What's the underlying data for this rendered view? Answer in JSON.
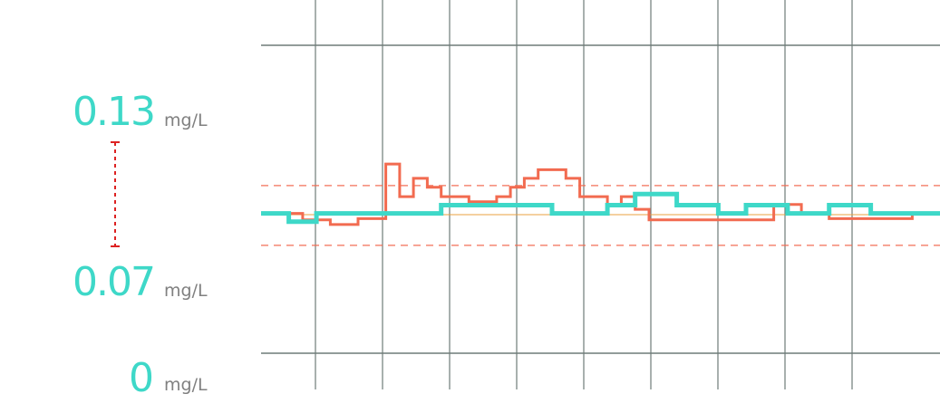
{
  "labels": {
    "top": {
      "value": "0.13",
      "unit": "mg/L"
    },
    "mid": {
      "value": "0.07",
      "unit": "mg/L"
    },
    "bottom": {
      "value": "0",
      "unit": "mg/L"
    }
  },
  "colors": {
    "series_a": "#3ed8c8",
    "series_b": "#f26b50",
    "band": "#f26b50",
    "target": "#e8a040",
    "grid": "#6f7b78",
    "range_marker": "#dd2222"
  },
  "chart_data": {
    "type": "line",
    "step": true,
    "title": "",
    "xlabel": "",
    "ylabel": "",
    "ylim": [
      0,
      0.2
    ],
    "grid": true,
    "band": [
      0.0701,
      0.1089
    ],
    "target": 0.09,
    "x": [
      0,
      1,
      2,
      3,
      4,
      5,
      6,
      7,
      8,
      9,
      10,
      11,
      12,
      13,
      14,
      15,
      16,
      17,
      18,
      19,
      20,
      21,
      22,
      23,
      24,
      25,
      26,
      27,
      28,
      29,
      30,
      31,
      32,
      33,
      34,
      35,
      36,
      37,
      38,
      39,
      40,
      41,
      42,
      43,
      44,
      45,
      46,
      47,
      48
    ],
    "series": [
      {
        "values": [
          0.0908,
          0.0908,
          0.0854,
          0.0854,
          0.0908,
          0.0908,
          0.0908,
          0.0908,
          0.0908,
          0.0908,
          0.0908,
          0.0908,
          0.0908,
          0.0962,
          0.0962,
          0.0962,
          0.0962,
          0.0962,
          0.0962,
          0.0962,
          0.0962,
          0.0908,
          0.0908,
          0.0908,
          0.0908,
          0.0962,
          0.0962,
          0.1034,
          0.1034,
          0.1034,
          0.0962,
          0.0962,
          0.0962,
          0.0908,
          0.0908,
          0.0962,
          0.0962,
          0.0962,
          0.0908,
          0.0908,
          0.0908,
          0.0962,
          0.0962,
          0.0962,
          0.0908,
          0.0908,
          0.0908,
          0.0908,
          0.0908
        ]
      },
      {
        "values": [
          0.0908,
          0.0908,
          0.0908,
          0.0866,
          0.0866,
          0.0836,
          0.0836,
          0.0874,
          0.0874,
          0.1229,
          0.1017,
          0.1136,
          0.1078,
          0.1017,
          0.1017,
          0.0984,
          0.0984,
          0.1017,
          0.1078,
          0.1136,
          0.1192,
          0.1192,
          0.1136,
          0.1017,
          0.1017,
          0.0962,
          0.1017,
          0.0935,
          0.0866,
          0.0866,
          0.0866,
          0.0866,
          0.0866,
          0.0866,
          0.0866,
          0.0866,
          0.0866,
          0.0966,
          0.0966,
          0.0908,
          0.0908,
          0.0874,
          0.0874,
          0.0874,
          0.0874,
          0.0874,
          0.0874,
          0.0908,
          0.0908
        ]
      }
    ]
  }
}
